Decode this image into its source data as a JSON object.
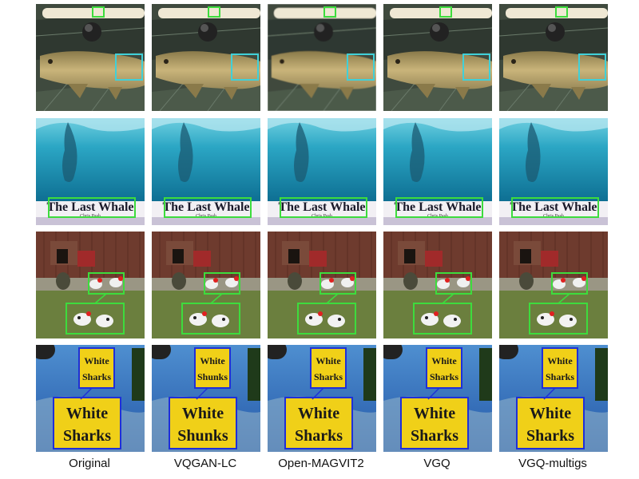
{
  "columns": [
    {
      "label": "Original"
    },
    {
      "label": "VQGAN-LC"
    },
    {
      "label": "Open-MAGVIT2"
    },
    {
      "label": "VGQ"
    },
    {
      "label": "VGQ-multigs"
    }
  ],
  "rows": [
    {
      "subject": "fish"
    },
    {
      "subject": "whale-poster"
    },
    {
      "subject": "chickens"
    },
    {
      "subject": "shark-book"
    }
  ],
  "poster": {
    "titles": [
      "The Last Whale",
      "The Last Whale",
      "The Last Whale",
      "The Last Whale",
      "The Last Whale"
    ],
    "byline": "Chris Pash"
  },
  "shark_book": {
    "word1": "White",
    "word2": "Sharks",
    "recon_words": [
      [
        "White",
        "Sharks"
      ],
      [
        "White",
        "Shunks"
      ],
      [
        "White",
        "Sharks"
      ],
      [
        "White",
        "Sharks"
      ],
      [
        "White",
        "Sharks"
      ]
    ]
  },
  "colors": {
    "highlight_green": "#3ddc3d",
    "highlight_cyan": "#40d0d8",
    "highlight_blue": "#1f2fd8"
  }
}
